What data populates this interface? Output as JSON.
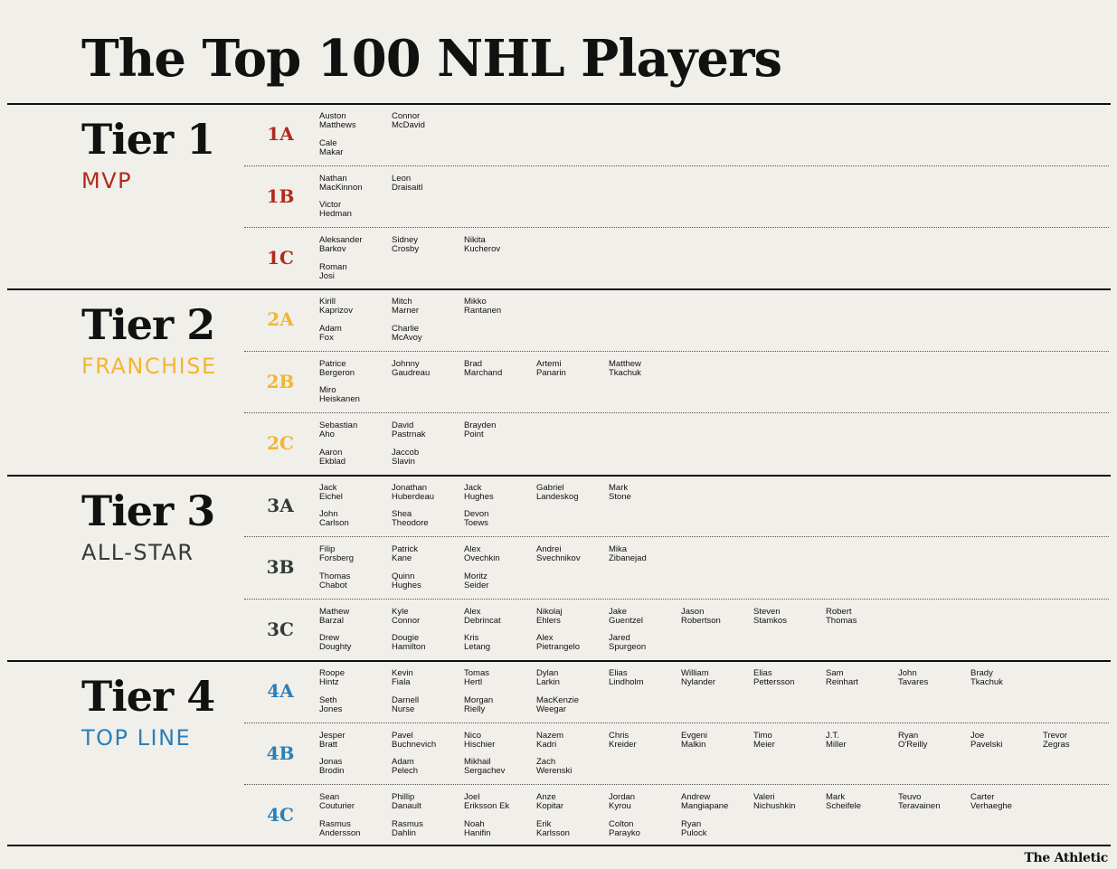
{
  "title": "The Top 100 NHL Players",
  "brand": "The Athletic",
  "colors": {
    "tier1": "#b22a1d",
    "tier2": "#f3b532",
    "tier3": "#333b35",
    "tier4": "#2b7fb8"
  },
  "tiers": [
    {
      "name": "Tier 1",
      "sub": "MVP",
      "color_key": "tier1",
      "subtiers": [
        {
          "label": "1A",
          "players": [
            [
              "Auston",
              "Matthews"
            ],
            [
              "Connor",
              "McDavid"
            ],
            [
              "Cale",
              "Makar"
            ]
          ]
        },
        {
          "label": "1B",
          "players": [
            [
              "Nathan",
              "MacKinnon"
            ],
            [
              "Leon",
              "Draisaitl"
            ],
            [
              "Victor",
              "Hedman"
            ]
          ]
        },
        {
          "label": "1C",
          "players": [
            [
              "Aleksander",
              "Barkov"
            ],
            [
              "Sidney",
              "Crosby"
            ],
            [
              "Nikita",
              "Kucherov"
            ],
            [
              "Roman",
              "Josi"
            ]
          ]
        }
      ]
    },
    {
      "name": "Tier 2",
      "sub": "FRANCHISE",
      "color_key": "tier2",
      "subtiers": [
        {
          "label": "2A",
          "players": [
            [
              "Kirill",
              "Kaprizov"
            ],
            [
              "Mitch",
              "Marner"
            ],
            [
              "Mikko",
              "Rantanen"
            ],
            [
              "Adam",
              "Fox"
            ],
            [
              "Charlie",
              "McAvoy"
            ]
          ]
        },
        {
          "label": "2B",
          "players": [
            [
              "Patrice",
              "Bergeron"
            ],
            [
              "Johnny",
              "Gaudreau"
            ],
            [
              "Brad",
              "Marchand"
            ],
            [
              "Artemi",
              "Panarin"
            ],
            [
              "Matthew",
              "Tkachuk"
            ],
            [
              "Miro",
              "Heiskanen"
            ]
          ]
        },
        {
          "label": "2C",
          "players": [
            [
              "Sebastian",
              "Aho"
            ],
            [
              "David",
              "Pastrnak"
            ],
            [
              "Brayden",
              "Point"
            ],
            [
              "Aaron",
              "Ekblad"
            ],
            [
              "Jaccob",
              "Slavin"
            ]
          ]
        }
      ]
    },
    {
      "name": "Tier 3",
      "sub": "ALL-STAR",
      "color_key": "tier3",
      "subtiers": [
        {
          "label": "3A",
          "players": [
            [
              "Jack",
              "Eichel"
            ],
            [
              "Jonathan",
              "Huberdeau"
            ],
            [
              "Jack",
              "Hughes"
            ],
            [
              "Gabriel",
              "Landeskog"
            ],
            [
              "Mark",
              "Stone"
            ],
            [
              "John",
              "Carlson"
            ],
            [
              "Shea",
              "Theodore"
            ],
            [
              "Devon",
              "Toews"
            ]
          ]
        },
        {
          "label": "3B",
          "players": [
            [
              "Filip",
              "Forsberg"
            ],
            [
              "Patrick",
              "Kane"
            ],
            [
              "Alex",
              "Ovechkin"
            ],
            [
              "Andrei",
              "Svechnikov"
            ],
            [
              "Mika",
              "Zibanejad"
            ],
            [
              "Thomas",
              "Chabot"
            ],
            [
              "Quinn",
              "Hughes"
            ],
            [
              "Moritz",
              "Seider"
            ]
          ]
        },
        {
          "label": "3C",
          "players": [
            [
              "Mathew",
              "Barzal"
            ],
            [
              "Kyle",
              "Connor"
            ],
            [
              "Alex",
              "Debrincat"
            ],
            [
              "Nikolaj",
              "Ehlers"
            ],
            [
              "Jake",
              "Guentzel"
            ],
            [
              "Jason",
              "Robertson"
            ],
            [
              "Steven",
              "Stamkos"
            ],
            [
              "Robert",
              "Thomas"
            ],
            [
              "Drew",
              "Doughty"
            ],
            [
              "Dougie",
              "Hamilton"
            ],
            [
              "Kris",
              "Letang"
            ],
            [
              "Alex",
              "Pietrangelo"
            ],
            [
              "Jared",
              "Spurgeon"
            ]
          ]
        }
      ]
    },
    {
      "name": "Tier 4",
      "sub": "TOP LINE",
      "color_key": "tier4",
      "subtiers": [
        {
          "label": "4A",
          "players": [
            [
              "Roope",
              "Hintz"
            ],
            [
              "Kevin",
              "Fiala"
            ],
            [
              "Tomas",
              "Hertl"
            ],
            [
              "Dylan",
              "Larkin"
            ],
            [
              "Elias",
              "Lindholm"
            ],
            [
              "William",
              "Nylander"
            ],
            [
              "Elias",
              "Pettersson"
            ],
            [
              "Sam",
              "Reinhart"
            ],
            [
              "John",
              "Tavares"
            ],
            [
              "Brady",
              "Tkachuk"
            ],
            [
              "Seth",
              "Jones"
            ],
            [
              "Darnell",
              "Nurse"
            ],
            [
              "Morgan",
              "Rielly"
            ],
            [
              "MacKenzie",
              "Weegar"
            ]
          ]
        },
        {
          "label": "4B",
          "players": [
            [
              "Jesper",
              "Bratt"
            ],
            [
              "Pavel",
              "Buchnevich"
            ],
            [
              "Nico",
              "Hischier"
            ],
            [
              "Nazem",
              "Kadri"
            ],
            [
              "Chris",
              "Kreider"
            ],
            [
              "Evgeni",
              "Malkin"
            ],
            [
              "Timo",
              "Meier"
            ],
            [
              "J.T.",
              "Miller"
            ],
            [
              "Ryan",
              "O'Reilly"
            ],
            [
              "Joe",
              "Pavelski"
            ],
            [
              "Trevor",
              "Zegras"
            ],
            [
              "Jonas",
              "Brodin"
            ],
            [
              "Adam",
              "Pelech"
            ],
            [
              "Mikhail",
              "Sergachev"
            ],
            [
              "Zach",
              "Werenski"
            ]
          ]
        },
        {
          "label": "4C",
          "players": [
            [
              "Sean",
              "Couturier"
            ],
            [
              "Phillip",
              "Danault"
            ],
            [
              "Joel",
              "Eriksson Ek"
            ],
            [
              "Anze",
              "Kopitar"
            ],
            [
              "Jordan",
              "Kyrou"
            ],
            [
              "Andrew",
              "Mangiapane"
            ],
            [
              "Valeri",
              "Nichushkin"
            ],
            [
              "Mark",
              "Scheifele"
            ],
            [
              "Teuvo",
              "Teravainen"
            ],
            [
              "Carter",
              "Verhaeghe"
            ],
            [
              "Rasmus",
              "Andersson"
            ],
            [
              "Rasmus",
              "Dahlin"
            ],
            [
              "Noah",
              "Hanifin"
            ],
            [
              "Erik",
              "Karlsson"
            ],
            [
              "Colton",
              "Parayko"
            ],
            [
              "Ryan",
              "Pulock"
            ]
          ]
        }
      ]
    }
  ]
}
